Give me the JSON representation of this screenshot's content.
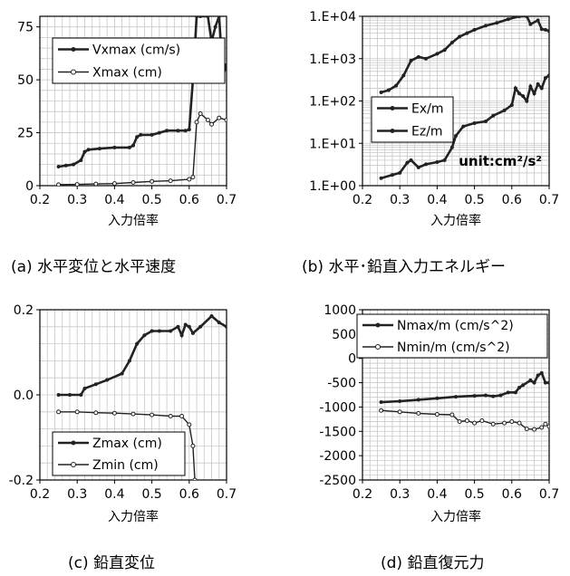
{
  "chart_data": [
    {
      "id": "a",
      "type": "line",
      "caption": "(a)  水平変位と水平速度",
      "xlabel": "入力倍率",
      "ylabel": "",
      "xlim": [
        0.2,
        0.7
      ],
      "ylim": [
        0,
        80
      ],
      "scale": "linear",
      "xticks": [
        0.2,
        0.3,
        0.4,
        0.5,
        0.6,
        0.7
      ],
      "xtick_labels": [
        "0.2",
        "0.3",
        "0.4",
        "0.5",
        "0.6",
        "0.7"
      ],
      "yticks": [
        0,
        25,
        50,
        75
      ],
      "ytick_labels": [
        "0",
        "25",
        "50",
        "75"
      ],
      "legend": "top-left",
      "unit_note": "",
      "series": [
        {
          "name": "Vxmax (cm/s)",
          "marker": "filled",
          "x": [
            0.25,
            0.27,
            0.29,
            0.31,
            0.32,
            0.33,
            0.36,
            0.4,
            0.44,
            0.45,
            0.46,
            0.47,
            0.5,
            0.52,
            0.54,
            0.57,
            0.59,
            0.6,
            0.61,
            0.62,
            0.63,
            0.65,
            0.66,
            0.67,
            0.68,
            0.69,
            0.7
          ],
          "y": [
            9,
            9.5,
            10,
            12,
            16,
            17,
            17.5,
            18,
            18,
            19,
            23,
            24,
            24,
            25,
            26,
            26,
            26,
            26.5,
            50,
            80,
            80,
            80,
            68,
            75,
            80,
            52,
            57
          ]
        },
        {
          "name": "Xmax (cm)",
          "marker": "open",
          "x": [
            0.25,
            0.3,
            0.35,
            0.4,
            0.45,
            0.5,
            0.55,
            0.6,
            0.61,
            0.62,
            0.63,
            0.65,
            0.66,
            0.68,
            0.7
          ],
          "y": [
            0.5,
            0.6,
            0.8,
            1.0,
            1.5,
            2.0,
            2.3,
            3.0,
            4.0,
            30,
            34,
            31,
            29,
            32,
            31
          ]
        }
      ]
    },
    {
      "id": "b",
      "type": "line",
      "caption": "(b)  水平･鉛直入力エネルギー",
      "xlabel": "入力倍率",
      "ylabel": "",
      "xlim": [
        0.2,
        0.7
      ],
      "ylim": [
        1,
        10000
      ],
      "scale": "log",
      "xticks": [
        0.2,
        0.3,
        0.4,
        0.5,
        0.6,
        0.7
      ],
      "xtick_labels": [
        "0.2",
        "0.3",
        "0.4",
        "0.5",
        "0.6",
        "0.7"
      ],
      "yticks": [
        1,
        10,
        100,
        1000,
        10000
      ],
      "ytick_labels": [
        "1.E+00",
        "1.E+01",
        "1.E+02",
        "1.E+03",
        "1.E+04"
      ],
      "legend": "center-left",
      "unit_note": "unit:cm²/s²",
      "series": [
        {
          "name": "Ex/m",
          "marker": "filled",
          "x": [
            0.25,
            0.27,
            0.29,
            0.31,
            0.33,
            0.35,
            0.37,
            0.4,
            0.42,
            0.44,
            0.46,
            0.48,
            0.5,
            0.53,
            0.56,
            0.59,
            0.62,
            0.64,
            0.65,
            0.67,
            0.68,
            0.69,
            0.7
          ],
          "y": [
            160,
            180,
            230,
            400,
            900,
            1100,
            1000,
            1300,
            1600,
            2400,
            3300,
            4000,
            4800,
            6000,
            7000,
            8500,
            10000,
            10000,
            6500,
            8000,
            5000,
            4800,
            4500
          ]
        },
        {
          "name": "Ez/m",
          "marker": "filled",
          "x": [
            0.25,
            0.28,
            0.3,
            0.32,
            0.33,
            0.35,
            0.37,
            0.4,
            0.42,
            0.44,
            0.45,
            0.47,
            0.5,
            0.53,
            0.55,
            0.58,
            0.6,
            0.61,
            0.62,
            0.63,
            0.64,
            0.65,
            0.66,
            0.67,
            0.68,
            0.69,
            0.7
          ],
          "y": [
            1.5,
            1.8,
            2.0,
            3.5,
            4.0,
            2.7,
            3.2,
            3.6,
            4.0,
            8.0,
            15,
            25,
            30,
            33,
            45,
            60,
            80,
            200,
            150,
            130,
            100,
            220,
            150,
            250,
            200,
            350,
            400
          ]
        }
      ]
    },
    {
      "id": "c",
      "type": "line",
      "caption": "(c)  鉛直変位",
      "xlabel": "入力倍率",
      "ylabel": "",
      "xlim": [
        0.2,
        0.7
      ],
      "ylim": [
        -0.2,
        0.2
      ],
      "scale": "linear",
      "xticks": [
        0.2,
        0.3,
        0.4,
        0.5,
        0.6,
        0.7
      ],
      "xtick_labels": [
        "0.2",
        "0.3",
        "0.4",
        "0.5",
        "0.6",
        "0.7"
      ],
      "yticks": [
        -0.2,
        0.0,
        0.2
      ],
      "ytick_labels": [
        "-0.2",
        "0.0",
        "0.2"
      ],
      "legend": "bottom-left",
      "unit_note": "",
      "series": [
        {
          "name": "Zmax (cm)",
          "marker": "filled",
          "x": [
            0.25,
            0.28,
            0.31,
            0.32,
            0.35,
            0.38,
            0.42,
            0.44,
            0.46,
            0.48,
            0.5,
            0.52,
            0.55,
            0.57,
            0.58,
            0.59,
            0.6,
            0.61,
            0.63,
            0.66,
            0.68,
            0.7
          ],
          "y": [
            0.0,
            0.0,
            0.0,
            0.015,
            0.025,
            0.035,
            0.05,
            0.08,
            0.12,
            0.14,
            0.15,
            0.15,
            0.15,
            0.16,
            0.14,
            0.165,
            0.16,
            0.145,
            0.16,
            0.185,
            0.17,
            0.16
          ]
        },
        {
          "name": "Zmin (cm)",
          "marker": "open",
          "x": [
            0.25,
            0.3,
            0.35,
            0.4,
            0.45,
            0.5,
            0.55,
            0.58,
            0.6,
            0.61,
            0.615
          ],
          "y": [
            -0.04,
            -0.04,
            -0.042,
            -0.043,
            -0.045,
            -0.047,
            -0.05,
            -0.05,
            -0.07,
            -0.12,
            -0.2
          ]
        }
      ]
    },
    {
      "id": "d",
      "type": "line",
      "caption": "(d)  鉛直復元力",
      "xlabel": "入力倍率",
      "ylabel": "",
      "xlim": [
        0.2,
        0.7
      ],
      "ylim": [
        -2500,
        1000
      ],
      "scale": "linear",
      "xticks": [
        0.2,
        0.3,
        0.4,
        0.5,
        0.6,
        0.7
      ],
      "xtick_labels": [
        "0.2",
        "0.3",
        "0.4",
        "0.5",
        "0.6",
        "0.7"
      ],
      "yticks": [
        -2500,
        -2000,
        -1500,
        -1000,
        -500,
        0,
        500,
        1000
      ],
      "ytick_labels": [
        "-2500",
        "-2000",
        "-1500",
        "-1000",
        "-500",
        "0",
        "500",
        "1000"
      ],
      "legend": "top-left",
      "unit_note": "",
      "series": [
        {
          "name": "Nmax/m (cm/s^2)",
          "marker": "filled",
          "x": [
            0.25,
            0.3,
            0.35,
            0.4,
            0.45,
            0.5,
            0.53,
            0.55,
            0.57,
            0.59,
            0.61,
            0.62,
            0.63,
            0.65,
            0.66,
            0.67,
            0.68,
            0.69,
            0.7
          ],
          "y": [
            -900,
            -880,
            -850,
            -820,
            -790,
            -770,
            -760,
            -780,
            -760,
            -700,
            -700,
            -600,
            -550,
            -450,
            -500,
            -350,
            -300,
            -500,
            -500
          ]
        },
        {
          "name": "Nmin/m (cm/s^2)",
          "marker": "open",
          "x": [
            0.25,
            0.3,
            0.35,
            0.4,
            0.44,
            0.46,
            0.48,
            0.5,
            0.52,
            0.55,
            0.58,
            0.6,
            0.62,
            0.64,
            0.66,
            0.68,
            0.69,
            0.7
          ],
          "y": [
            -1070,
            -1100,
            -1130,
            -1150,
            -1160,
            -1300,
            -1280,
            -1330,
            -1280,
            -1350,
            -1330,
            -1300,
            -1330,
            -1450,
            -1460,
            -1420,
            -1350,
            -1400
          ]
        }
      ]
    }
  ]
}
